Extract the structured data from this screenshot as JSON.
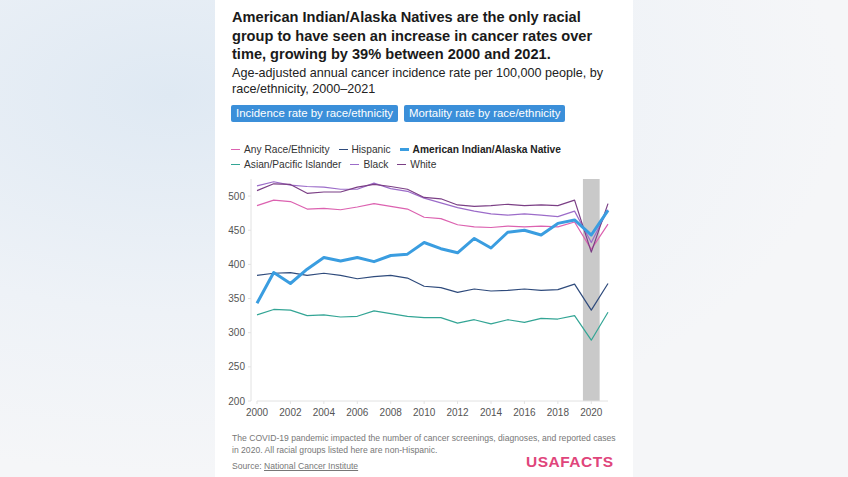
{
  "chart_data": {
    "type": "line",
    "title": "American Indian/Alaska Natives are the only racial group to have seen an increase in cancer rates over time, growing by 39% between 2000 and 2021.",
    "subtitle": "Age-adjusted annual cancer incidence rate per 100,000 people, by race/ethnicity, 2000–2021",
    "buttons": [
      "Incidence rate by race/ethnicity",
      "Mortality rate by race/ethnicity"
    ],
    "note": "The COVID-19 pandemic impacted the number of cancer screenings, diagnoses, and reported cases in 2020. All racial groups listed here are non-Hispanic.",
    "source_label": "Source:",
    "source": "National Cancer Institute",
    "brand": "USAFACTS",
    "highlight": {
      "from": 2019.5,
      "to": 2020.5
    },
    "x": [
      2000,
      2001,
      2002,
      2003,
      2004,
      2005,
      2006,
      2007,
      2008,
      2009,
      2010,
      2011,
      2012,
      2013,
      2014,
      2015,
      2016,
      2017,
      2018,
      2019,
      2020,
      2021
    ],
    "xlim": [
      2000,
      2021
    ],
    "xticks": [
      2000,
      2002,
      2004,
      2006,
      2008,
      2010,
      2012,
      2014,
      2016,
      2018,
      2020
    ],
    "ylim": [
      200,
      525
    ],
    "yticks": [
      200,
      250,
      300,
      350,
      400,
      450,
      500
    ],
    "grid": false,
    "legend": "top",
    "series": [
      {
        "name": "Any Race/Ethnicity",
        "color": "#dc62b0",
        "line_style": "solid",
        "values": [
          486,
          494,
          492,
          481,
          482,
          480,
          484,
          489,
          485,
          481,
          469,
          467,
          458,
          455,
          454,
          456,
          455,
          456,
          455,
          462,
          422,
          459
        ]
      },
      {
        "name": "Hispanic",
        "color": "#2f4b7c",
        "line_style": "solid",
        "values": [
          384,
          387,
          388,
          384,
          387,
          384,
          379,
          382,
          384,
          380,
          368,
          366,
          359,
          364,
          361,
          362,
          364,
          362,
          363,
          371,
          333,
          372
        ]
      },
      {
        "name": "American Indian/Alaska Native",
        "color": "#3a9de0",
        "line_style": "thick",
        "values": [
          343,
          388,
          372,
          393,
          410,
          405,
          410,
          404,
          413,
          415,
          432,
          423,
          417,
          438,
          424,
          447,
          450,
          443,
          460,
          465,
          443,
          479
        ]
      },
      {
        "name": "Asian/Pacific Islander",
        "color": "#33a595",
        "line_style": "solid",
        "values": [
          326,
          334,
          333,
          325,
          326,
          323,
          324,
          332,
          328,
          324,
          322,
          322,
          314,
          319,
          313,
          319,
          315,
          321,
          320,
          325,
          289,
          330
        ]
      },
      {
        "name": "Black",
        "color": "#9c6cc9",
        "line_style": "solid",
        "values": [
          515,
          521,
          516,
          514,
          513,
          510,
          510,
          519,
          511,
          507,
          497,
          490,
          483,
          478,
          474,
          472,
          474,
          472,
          470,
          478,
          432,
          480
        ]
      },
      {
        "name": "White",
        "color": "#7b3f85",
        "line_style": "solid",
        "values": [
          508,
          518,
          517,
          504,
          506,
          506,
          513,
          517,
          514,
          510,
          498,
          496,
          487,
          485,
          486,
          488,
          486,
          487,
          486,
          494,
          418,
          489
        ]
      }
    ]
  }
}
